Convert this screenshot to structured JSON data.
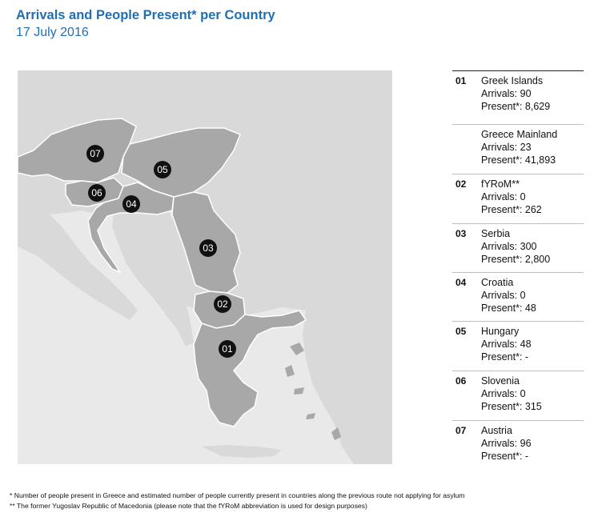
{
  "header": {
    "title": "Arrivals and People Present* per Country",
    "date": "17 July 2016"
  },
  "colors": {
    "title": "#1f6fb5",
    "sea": "#e9e9e9",
    "land_other": "#d9d9d9",
    "route_country": "#a8a8a8",
    "marker": "#111111"
  },
  "markers": [
    "07",
    "05",
    "06",
    "04",
    "03",
    "02",
    "01"
  ],
  "legend": [
    {
      "num": "01",
      "name": "Greek Islands",
      "arrivals": "Arrivals: 90",
      "present": "Present*: 8,629"
    },
    {
      "num": "",
      "name": "Greece Mainland",
      "arrivals": "Arrivals: 23",
      "present": "Present*: 41,893"
    },
    {
      "num": "02",
      "name": "fYRoM**",
      "arrivals": "Arrivals: 0",
      "present": "Present*: 262"
    },
    {
      "num": "03",
      "name": "Serbia",
      "arrivals": "Arrivals: 300",
      "present": "Present*: 2,800"
    },
    {
      "num": "04",
      "name": "Croatia",
      "arrivals": "Arrivals: 0",
      "present": "Present*: 48"
    },
    {
      "num": "05",
      "name": "Hungary",
      "arrivals": "Arrivals: 48",
      "present": "Present*: -"
    },
    {
      "num": "06",
      "name": "Slovenia",
      "arrivals": "Arrivals: 0",
      "present": "Present*: 315"
    },
    {
      "num": "07",
      "name": "Austria",
      "arrivals": "Arrivals: 96",
      "present": "Present*: -"
    }
  ],
  "footnotes": {
    "note1": "* Number of people present in Greece and estimated number of people currently present in countries along the previous route not applying for asylum",
    "note2": "** The former Yugoslav Republic of Macedonia  (please note that the fYRoM abbreviation is used for design purposes)"
  }
}
